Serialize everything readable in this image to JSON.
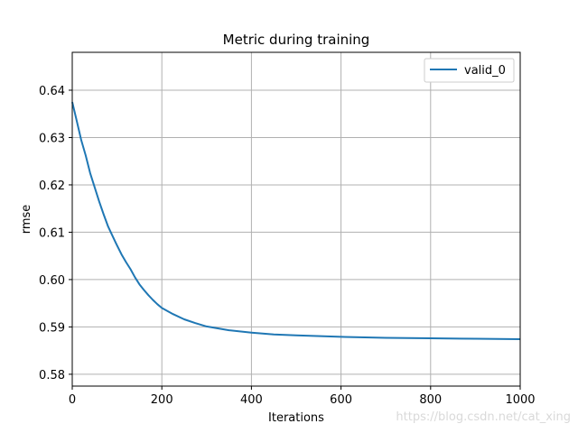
{
  "chart_data": {
    "type": "line",
    "title": "Metric during training",
    "xlabel": "Iterations",
    "ylabel": "rmse",
    "xlim": [
      0,
      1000
    ],
    "ylim": [
      0.5775,
      0.648
    ],
    "xticks": [
      0,
      200,
      400,
      600,
      800,
      1000
    ],
    "xtick_labels": [
      "0",
      "200",
      "400",
      "600",
      "800",
      "1000"
    ],
    "yticks": [
      0.58,
      0.59,
      0.6,
      0.61,
      0.62,
      0.63,
      0.64
    ],
    "ytick_labels": [
      "0.58",
      "0.59",
      "0.60",
      "0.61",
      "0.62",
      "0.63",
      "0.64"
    ],
    "grid": true,
    "legend_position": "top-right",
    "series": [
      {
        "name": "valid_0",
        "color": "#1f77b4",
        "x": [
          0,
          10,
          20,
          30,
          40,
          50,
          60,
          70,
          80,
          90,
          100,
          110,
          120,
          130,
          140,
          150,
          160,
          170,
          180,
          190,
          200,
          225,
          250,
          275,
          300,
          350,
          400,
          450,
          500,
          600,
          700,
          800,
          900,
          1000
        ],
        "y": [
          0.6375,
          0.6335,
          0.6295,
          0.6262,
          0.6225,
          0.6195,
          0.6165,
          0.6138,
          0.6112,
          0.6092,
          0.6072,
          0.6053,
          0.6037,
          0.6022,
          0.6005,
          0.599,
          0.5978,
          0.5967,
          0.5957,
          0.5948,
          0.594,
          0.5927,
          0.5916,
          0.5908,
          0.5901,
          0.5893,
          0.5888,
          0.5884,
          0.5882,
          0.5879,
          0.5877,
          0.5876,
          0.5875,
          0.5874
        ]
      }
    ]
  },
  "watermark": "https://blog.csdn.net/cat_xing"
}
